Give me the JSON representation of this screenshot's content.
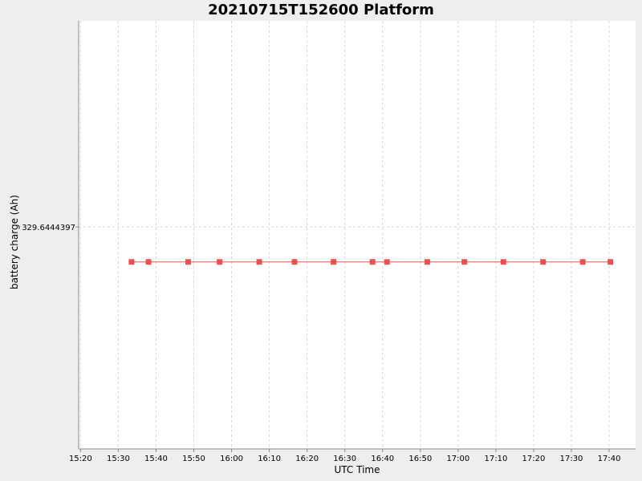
{
  "chart_data": {
    "type": "line",
    "title": "20210715T152600 Platform",
    "xlabel": "UTC Time",
    "ylabel": "battery charge (Ah)",
    "x_ticks": [
      "15:20",
      "15:30",
      "15:40",
      "15:50",
      "16:00",
      "16:10",
      "16:20",
      "16:30",
      "16:40",
      "16:50",
      "17:00",
      "17:10",
      "17:20",
      "17:30",
      "17:40"
    ],
    "xlim": [
      "15:19:30",
      "17:47:00"
    ],
    "y_ticks": [
      "329.6444397"
    ],
    "ylim": [
      329.64442,
      329.644458
    ],
    "grid": true,
    "series": [
      {
        "color": "#f05050",
        "marker": "square",
        "x": [
          "15:33:30",
          "15:38:00",
          "15:48:30",
          "15:56:50",
          "16:07:20",
          "16:16:40",
          "16:27:00",
          "16:37:20",
          "16:41:10",
          "16:51:50",
          "17:01:40",
          "17:12:00",
          "17:22:30",
          "17:33:00",
          "17:40:20"
        ],
        "y": [
          329.6444366,
          329.6444366,
          329.6444366,
          329.6444366,
          329.6444366,
          329.6444366,
          329.6444366,
          329.6444366,
          329.6444366,
          329.6444366,
          329.6444366,
          329.6444366,
          329.6444366,
          329.6444366,
          329.6444366
        ]
      }
    ]
  }
}
